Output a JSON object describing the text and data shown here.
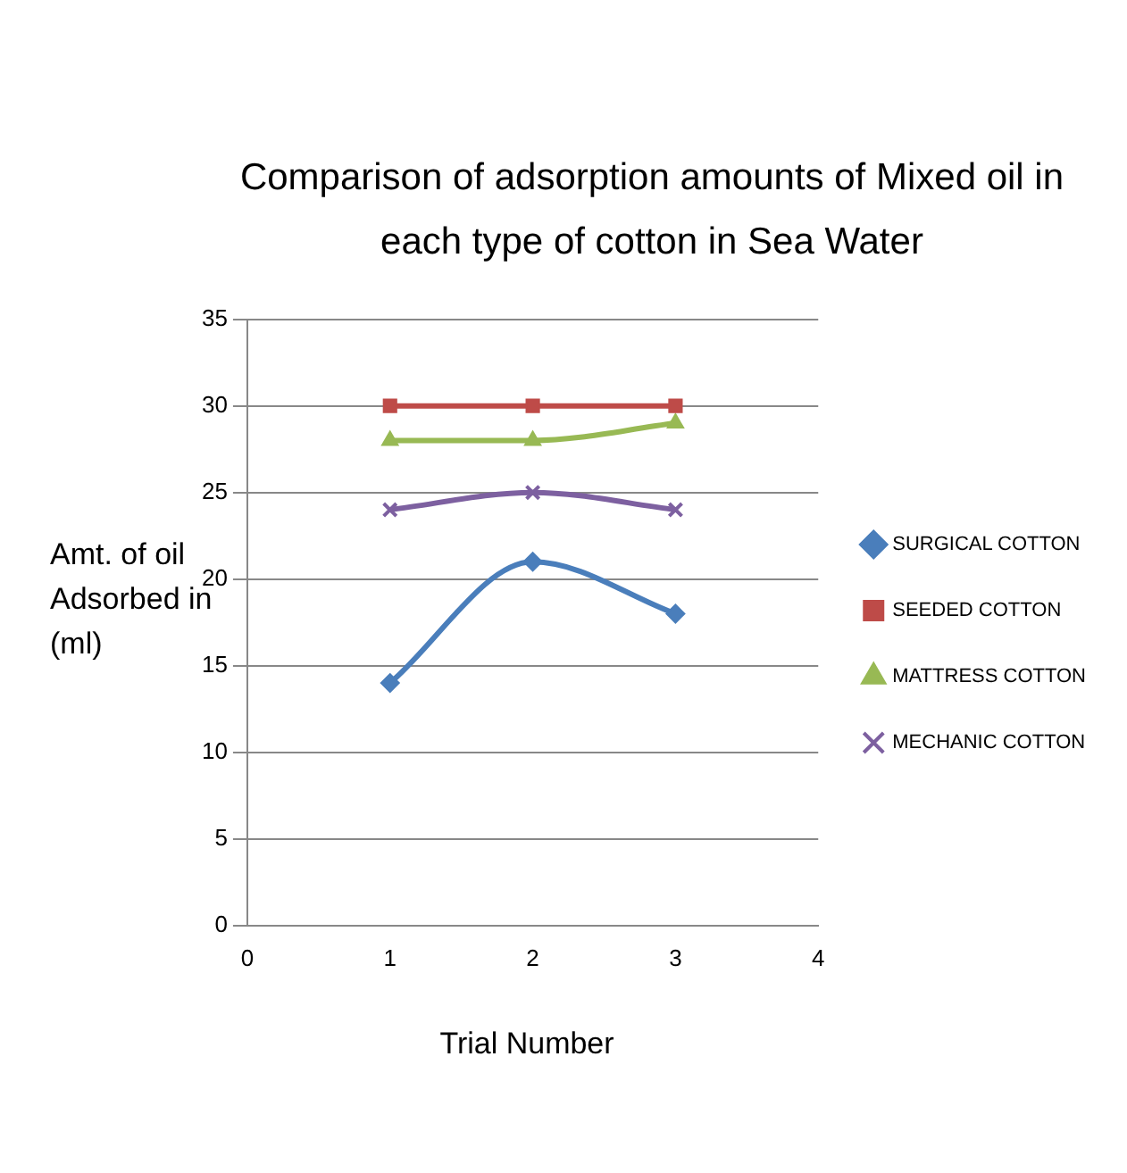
{
  "chart_data": {
    "type": "line",
    "title": "Comparison of adsorption amounts of Mixed oil in each type of cotton in Sea Water",
    "xlabel": "Trial Number",
    "ylabel": "Amt. of oil Adsorbed in (ml)",
    "x": [
      1,
      2,
      3
    ],
    "xlim": [
      0,
      4
    ],
    "xticks": [
      0,
      1,
      2,
      3,
      4
    ],
    "ylim": [
      0,
      35
    ],
    "yticks": [
      0,
      5,
      10,
      15,
      20,
      25,
      30,
      35
    ],
    "grid": "y",
    "legend": "right",
    "series": [
      {
        "name": "SURGICAL COTTON",
        "color": "#4a7ebb",
        "values": [
          14,
          21,
          18
        ],
        "marker": "diamond"
      },
      {
        "name": "SEEDED COTTON",
        "color": "#be4b48",
        "values": [
          30,
          30,
          30
        ],
        "marker": "square"
      },
      {
        "name": "MATTRESS COTTON",
        "color": "#98b954",
        "values": [
          28,
          28,
          29
        ],
        "marker": "triangle"
      },
      {
        "name": "MECHANIC COTTON",
        "color": "#7d60a0",
        "values": [
          24,
          25,
          24
        ],
        "marker": "cross"
      }
    ]
  }
}
